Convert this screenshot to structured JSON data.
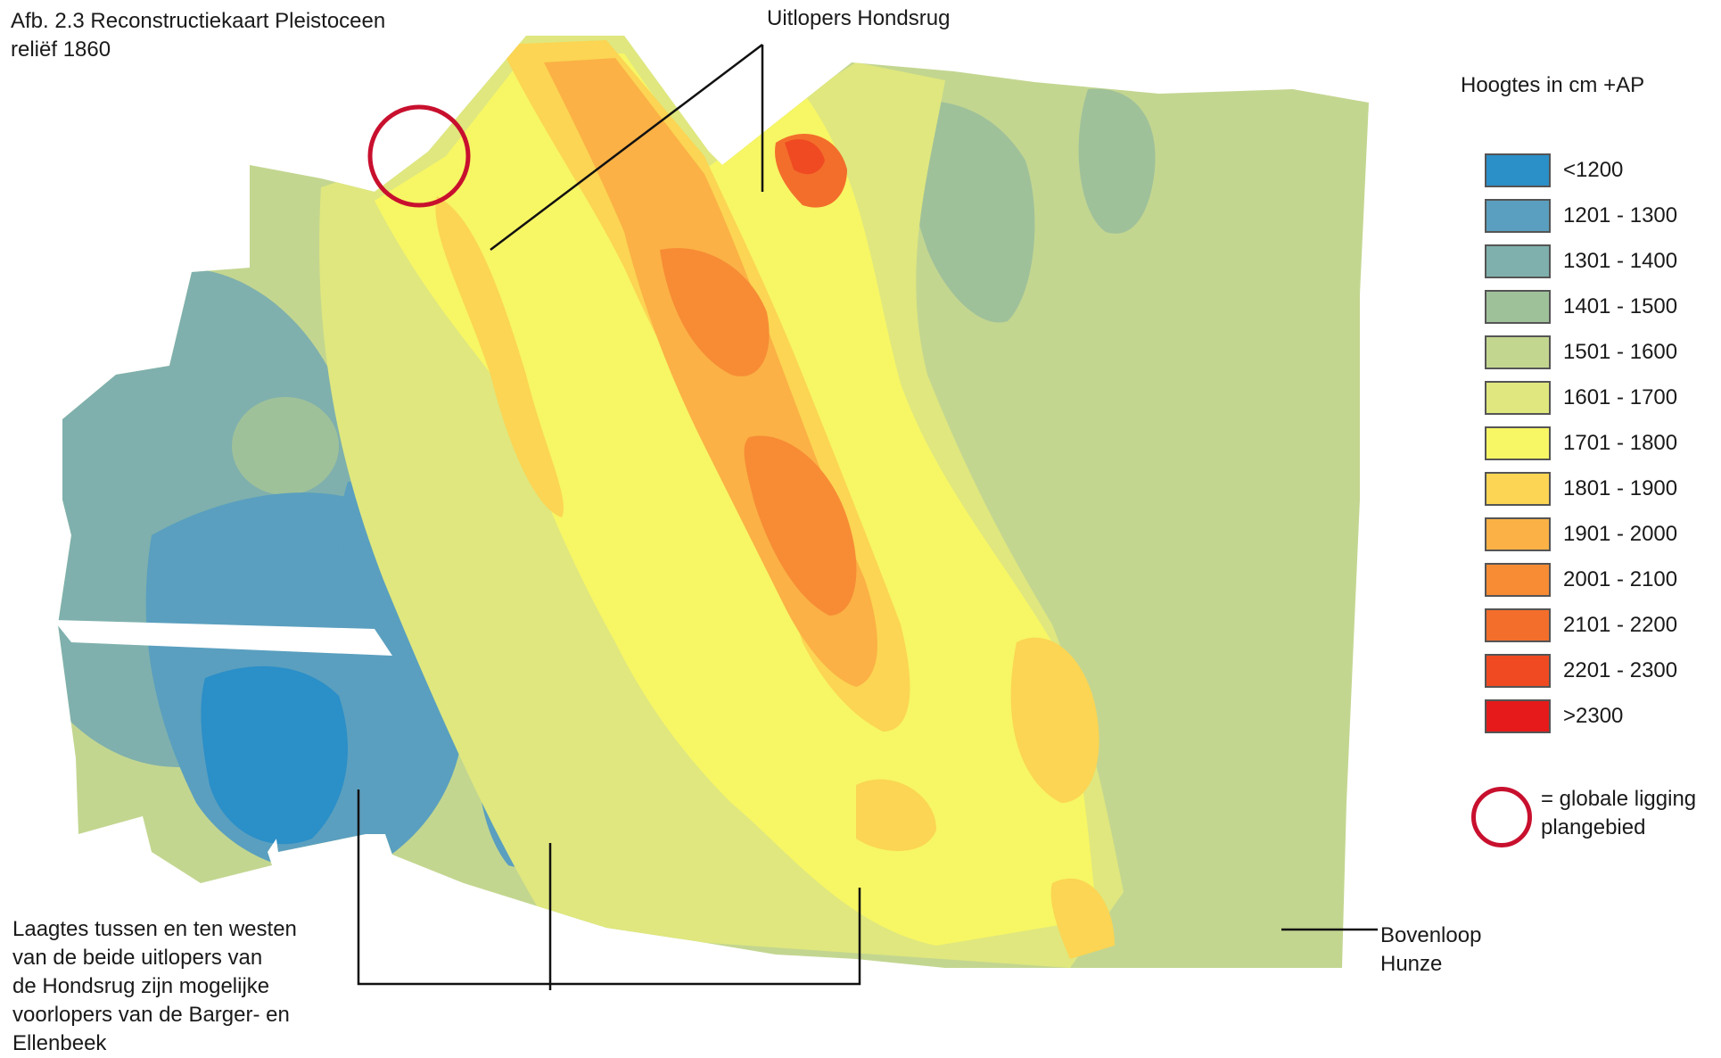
{
  "figure_title_line1": "Afb. 2.3 Reconstructiekaart Pleistoceen",
  "figure_title_line2": "reliëf 1860",
  "annotations": {
    "hondsrug": "Uitlopers Hondsrug",
    "laagtes_lines": [
      "Laagtes tussen en ten westen",
      "van de beide uitlopers van",
      "de Hondsrug zijn mogelijke",
      "voorlopers van de Barger- en",
      "Ellenbeek"
    ],
    "hunze_lines": [
      "Bovenloop",
      "Hunze"
    ]
  },
  "legend": {
    "title": "Hoogtes in cm +AP",
    "classes": [
      {
        "label": "<1200",
        "color": "#2b8fc8"
      },
      {
        "label": "1201 - 1300",
        "color": "#5a9fbf"
      },
      {
        "label": "1301 - 1400",
        "color": "#7fb0ad"
      },
      {
        "label": "1401 - 1500",
        "color": "#9fc19a"
      },
      {
        "label": "1501 - 1600",
        "color": "#c3d690"
      },
      {
        "label": "1601 - 1700",
        "color": "#dfe77e"
      },
      {
        "label": "1701 - 1800",
        "color": "#f7f665"
      },
      {
        "label": "1801 - 1900",
        "color": "#fbd553"
      },
      {
        "label": "1901 - 2000",
        "color": "#fbb145"
      },
      {
        "label": "2001 - 2100",
        "color": "#f78c35"
      },
      {
        "label": "2101 - 2200",
        "color": "#f36e2b"
      },
      {
        "label": "2201 - 2300",
        "color": "#ef4a22"
      },
      {
        "label": ">2300",
        "color": "#e61a1a"
      }
    ],
    "circle_key_lines": [
      "= globale ligging",
      "plangebied"
    ],
    "circle_color": "#c8102e"
  }
}
